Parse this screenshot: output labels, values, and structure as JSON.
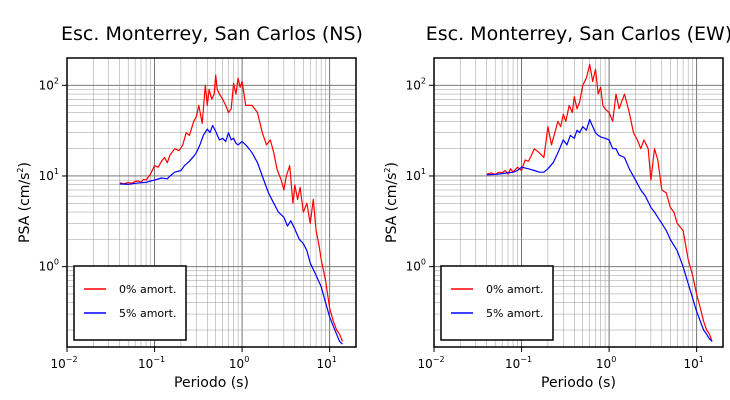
{
  "chart_data": [
    {
      "type": "line",
      "title": "Esc. Monterrey, San Carlos (NS)",
      "xlabel": "Periodo (s)",
      "ylabel_main": "PSA (cm/s",
      "ylabel_sup": "2",
      "ylabel_close": ")",
      "x_scale": "log",
      "y_scale": "log",
      "xlim": [
        0.01,
        20
      ],
      "ylim": [
        0.13,
        200
      ],
      "grid": true,
      "legend_position": "bottom-left",
      "x_ticks": [
        {
          "base": "10",
          "exp": "−2"
        },
        {
          "base": "10",
          "exp": "−1"
        },
        {
          "base": "10",
          "exp": "0"
        },
        {
          "base": "10",
          "exp": "1"
        }
      ],
      "y_ticks": [
        {
          "base": "10",
          "exp": "0"
        },
        {
          "base": "10",
          "exp": "1"
        },
        {
          "base": "10",
          "exp": "2"
        }
      ],
      "series": [
        {
          "name": "0% amort.",
          "color": "#ff0000",
          "x": [
            0.04,
            0.045,
            0.05,
            0.055,
            0.06,
            0.065,
            0.07,
            0.075,
            0.08,
            0.09,
            0.1,
            0.11,
            0.12,
            0.13,
            0.14,
            0.15,
            0.17,
            0.19,
            0.21,
            0.23,
            0.25,
            0.28,
            0.3,
            0.32,
            0.35,
            0.38,
            0.4,
            0.42,
            0.45,
            0.48,
            0.5,
            0.52,
            0.55,
            0.6,
            0.65,
            0.7,
            0.75,
            0.8,
            0.85,
            0.9,
            0.95,
            1.0,
            1.1,
            1.2,
            1.3,
            1.5,
            1.7,
            1.9,
            2.1,
            2.3,
            2.5,
            2.8,
            3.0,
            3.2,
            3.5,
            3.8,
            4.0,
            4.3,
            4.6,
            5.0,
            5.5,
            6.0,
            6.5,
            7.0,
            7.5,
            8.0,
            9.0,
            10.0,
            11.0,
            12.0,
            13.0,
            14.0
          ],
          "y": [
            8.4,
            8.2,
            8.5,
            8.3,
            8.7,
            8.8,
            8.5,
            9.2,
            9.0,
            10.5,
            13.0,
            12.5,
            14.5,
            16.0,
            14.0,
            17.0,
            20.0,
            19.0,
            22.0,
            30.0,
            28.0,
            40.0,
            45.0,
            60.0,
            38.0,
            100.0,
            60.0,
            90.0,
            70.0,
            80.0,
            130.0,
            90.0,
            80.0,
            70.0,
            60.0,
            50.0,
            55.0,
            105.0,
            80.0,
            120.0,
            95.0,
            110.0,
            60.0,
            60.0,
            60.0,
            50.0,
            30.0,
            22.0,
            25.0,
            18.0,
            12.0,
            9.0,
            7.0,
            10.0,
            13.0,
            5.0,
            8.0,
            5.5,
            7.5,
            4.0,
            5.0,
            3.0,
            5.5,
            2.5,
            1.8,
            1.2,
            0.7,
            0.35,
            0.25,
            0.2,
            0.18,
            0.15
          ]
        },
        {
          "name": "5% amort.",
          "color": "#0000ff",
          "x": [
            0.04,
            0.05,
            0.06,
            0.07,
            0.08,
            0.09,
            0.1,
            0.12,
            0.14,
            0.15,
            0.17,
            0.2,
            0.22,
            0.25,
            0.28,
            0.3,
            0.33,
            0.36,
            0.4,
            0.43,
            0.46,
            0.5,
            0.55,
            0.6,
            0.65,
            0.7,
            0.75,
            0.8,
            0.85,
            0.9,
            1.0,
            1.1,
            1.2,
            1.3,
            1.5,
            1.7,
            2.0,
            2.3,
            2.6,
            3.0,
            3.3,
            3.6,
            4.0,
            4.5,
            5.0,
            5.5,
            6.0,
            7.0,
            8.0,
            9.0,
            10.0,
            11.0,
            12.0,
            13.0,
            14.0
          ],
          "y": [
            8.2,
            8.1,
            8.3,
            8.4,
            8.5,
            8.8,
            9.0,
            9.5,
            9.3,
            10.0,
            11.0,
            11.5,
            13.0,
            14.5,
            16.5,
            18.0,
            22.0,
            28.0,
            33.0,
            30.0,
            36.0,
            31.0,
            25.0,
            26.0,
            24.0,
            30.0,
            25.0,
            26.0,
            23.0,
            22.0,
            24.0,
            22.0,
            20.0,
            18.0,
            14.0,
            10.0,
            6.5,
            5.0,
            4.0,
            3.5,
            2.8,
            3.2,
            2.6,
            2.0,
            1.8,
            1.5,
            1.1,
            0.8,
            0.6,
            0.4,
            0.28,
            0.22,
            0.18,
            0.15,
            0.14
          ]
        }
      ]
    },
    {
      "type": "line",
      "title": "Esc. Monterrey, San Carlos (EW)",
      "xlabel": "Periodo (s)",
      "ylabel_main": "PSA (cm/s",
      "ylabel_sup": "2",
      "ylabel_close": ")",
      "x_scale": "log",
      "y_scale": "log",
      "xlim": [
        0.01,
        20
      ],
      "ylim": [
        0.13,
        200
      ],
      "grid": true,
      "legend_position": "bottom-left",
      "x_ticks": [
        {
          "base": "10",
          "exp": "−2"
        },
        {
          "base": "10",
          "exp": "−1"
        },
        {
          "base": "10",
          "exp": "0"
        },
        {
          "base": "10",
          "exp": "1"
        }
      ],
      "y_ticks": [
        {
          "base": "10",
          "exp": "0"
        },
        {
          "base": "10",
          "exp": "1"
        },
        {
          "base": "10",
          "exp": "2"
        }
      ],
      "series": [
        {
          "name": "0% amort.",
          "color": "#ff0000",
          "x": [
            0.04,
            0.045,
            0.05,
            0.055,
            0.06,
            0.065,
            0.07,
            0.075,
            0.08,
            0.09,
            0.1,
            0.11,
            0.12,
            0.13,
            0.14,
            0.16,
            0.18,
            0.2,
            0.22,
            0.24,
            0.26,
            0.28,
            0.3,
            0.32,
            0.35,
            0.38,
            0.4,
            0.43,
            0.46,
            0.5,
            0.55,
            0.6,
            0.65,
            0.7,
            0.75,
            0.8,
            0.85,
            0.9,
            1.0,
            1.1,
            1.2,
            1.3,
            1.5,
            1.7,
            1.9,
            2.1,
            2.3,
            2.5,
            2.8,
            3.0,
            3.3,
            3.6,
            4.0,
            4.5,
            5.0,
            5.5,
            6.0,
            7.0,
            8.0,
            9.0,
            10.0,
            11.0,
            12.0,
            13.0,
            14.0,
            15.0
          ],
          "y": [
            10.5,
            10.8,
            10.4,
            11.0,
            10.8,
            11.5,
            10.5,
            12.0,
            11.0,
            12.5,
            11.5,
            15.0,
            14.5,
            17.0,
            20.0,
            18.0,
            16.0,
            35.0,
            22.0,
            30.0,
            40.0,
            35.0,
            48.0,
            40.0,
            60.0,
            50.0,
            75.0,
            55.0,
            65.0,
            100.0,
            120.0,
            170.0,
            110.0,
            150.0,
            80.0,
            95.0,
            60.0,
            55.0,
            50.0,
            40.0,
            80.0,
            55.0,
            80.0,
            50.0,
            30.0,
            25.0,
            20.0,
            25.0,
            20.0,
            9.0,
            20.0,
            15.0,
            7.0,
            6.5,
            4.5,
            4.0,
            3.0,
            2.5,
            1.2,
            0.8,
            0.5,
            0.35,
            0.25,
            0.2,
            0.18,
            0.15
          ]
        },
        {
          "name": "5% amort.",
          "color": "#0000ff",
          "x": [
            0.04,
            0.05,
            0.06,
            0.07,
            0.08,
            0.09,
            0.1,
            0.12,
            0.14,
            0.16,
            0.18,
            0.2,
            0.23,
            0.26,
            0.3,
            0.33,
            0.36,
            0.4,
            0.43,
            0.46,
            0.5,
            0.55,
            0.6,
            0.65,
            0.7,
            0.75,
            0.8,
            0.9,
            1.0,
            1.1,
            1.2,
            1.3,
            1.5,
            1.7,
            2.0,
            2.3,
            2.6,
            3.0,
            3.3,
            3.6,
            4.0,
            4.5,
            5.0,
            6.0,
            7.0,
            8.0,
            9.0,
            10.0,
            11.0,
            12.0,
            13.0,
            14.0,
            15.0
          ],
          "y": [
            10.3,
            10.4,
            10.6,
            10.8,
            11.0,
            11.5,
            12.5,
            12.0,
            11.5,
            11.0,
            11.0,
            12.0,
            14.0,
            18.0,
            25.0,
            22.0,
            28.0,
            26.0,
            32.0,
            30.0,
            35.0,
            32.0,
            42.0,
            35.0,
            30.0,
            28.0,
            27.0,
            26.0,
            25.0,
            20.0,
            20.0,
            17.0,
            16.0,
            12.0,
            9.0,
            7.0,
            6.0,
            4.5,
            4.0,
            3.5,
            3.0,
            2.5,
            2.0,
            1.5,
            1.0,
            0.65,
            0.45,
            0.32,
            0.25,
            0.2,
            0.18,
            0.16,
            0.15
          ]
        }
      ]
    }
  ]
}
